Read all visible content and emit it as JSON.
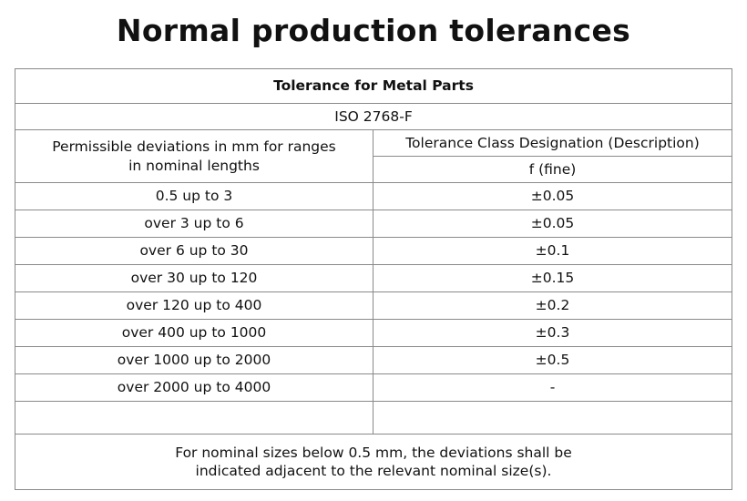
{
  "page": {
    "title": "Normal production tolerances"
  },
  "table": {
    "title": "Tolerance for Metal Parts",
    "standard": "ISO 2768-F",
    "left_header_line1": "Permissible deviations in mm for ranges",
    "left_header_line2": "in nominal lengths",
    "right_header": "Tolerance Class Designation (Description)",
    "class_name": "f (fine)",
    "rows": [
      {
        "range": "0.5 up to 3",
        "value": "±0.05"
      },
      {
        "range": "over 3 up to 6",
        "value": "±0.05"
      },
      {
        "range": "over 6 up to 30",
        "value": "±0.1"
      },
      {
        "range": "over 30 up to 120",
        "value": "±0.15"
      },
      {
        "range": "over 120 up to 400",
        "value": "±0.2"
      },
      {
        "range": "over 400 up to 1000",
        "value": "±0.3"
      },
      {
        "range": "over 1000 up to 2000",
        "value": "±0.5"
      },
      {
        "range": "over 2000 up to 4000",
        "value": "-"
      }
    ],
    "note_line1": "For nominal sizes below 0.5 mm, the deviations shall be",
    "note_line2": "indicated adjacent to the relevant nominal size(s)."
  }
}
